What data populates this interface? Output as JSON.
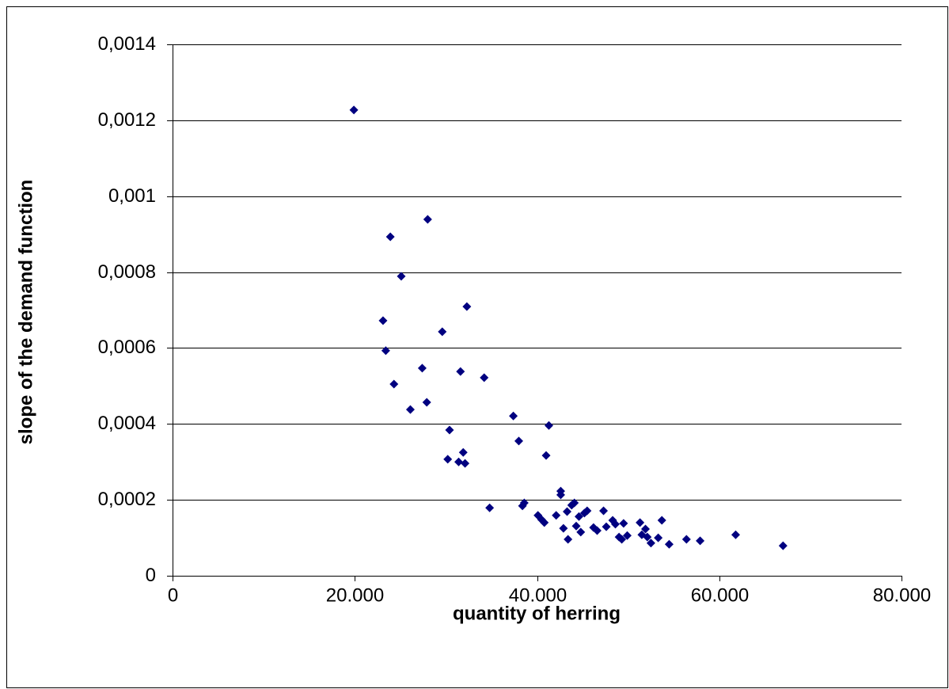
{
  "chart_data": {
    "type": "scatter",
    "x_label": "quantity of herring",
    "y_label": "slope of the demand function",
    "color": "#000080",
    "grid": true,
    "xlim": [
      0,
      80000
    ],
    "ylim": [
      0,
      0.0014
    ],
    "xticks": [
      0,
      {
        "value": 20000,
        "label": "20.000"
      },
      {
        "value": 40000,
        "label": "40.000"
      },
      {
        "value": 60000,
        "label": "60.000"
      },
      {
        "value": 80000,
        "label": "80.000"
      }
    ],
    "yticks": [
      0,
      {
        "value": 0.0002,
        "label": "0,0002"
      },
      {
        "value": 0.0004,
        "label": "0,0004"
      },
      {
        "value": 0.0006,
        "label": "0,0006"
      },
      {
        "value": 0.0008,
        "label": "0,0008"
      },
      {
        "value": 0.001,
        "label": "0,001"
      },
      {
        "value": 0.0012,
        "label": "0,0012"
      },
      {
        "value": 0.0014,
        "label": "0,0014"
      }
    ],
    "x": [
      19900,
      23100,
      23400,
      23900,
      24300,
      25100,
      26100,
      27400,
      27900,
      28000,
      29600,
      30200,
      30400,
      31400,
      31600,
      31900,
      32100,
      32300,
      34200,
      34800,
      37400,
      38000,
      38400,
      38600,
      40100,
      40500,
      40800,
      41000,
      41300,
      42100,
      42600,
      42600,
      42900,
      43300,
      43400,
      43800,
      44100,
      44300,
      44600,
      44800,
      45200,
      45500,
      46200,
      46600,
      47300,
      47600,
      48300,
      48600,
      49000,
      49300,
      49500,
      49900,
      51300,
      51500,
      51900,
      52100,
      52500,
      53300,
      53700,
      54500,
      56400,
      57900,
      61800,
      67000
    ],
    "values": [
      0.001227,
      0.000672,
      0.000593,
      0.000893,
      0.000505,
      0.000789,
      0.000438,
      0.000547,
      0.000457,
      0.000939,
      0.000643,
      0.000307,
      0.000384,
      0.0003,
      0.000538,
      0.000325,
      0.000296,
      0.000709,
      0.000522,
      0.000179,
      0.000421,
      0.000355,
      0.000184,
      0.000192,
      0.000159,
      0.000148,
      0.00014,
      0.000317,
      0.000396,
      0.000159,
      0.000213,
      0.000223,
      0.000125,
      0.000169,
      9.6e-05,
      0.000186,
      0.000192,
      0.000131,
      0.000156,
      0.000115,
      0.000165,
      0.000171,
      0.000127,
      0.000119,
      0.000171,
      0.000129,
      0.000146,
      0.000136,
      0.000102,
      9.6e-05,
      0.000138,
      0.000106,
      0.00014,
      0.000108,
      0.000123,
      0.000102,
      8.6e-05,
      0.0001,
      0.000146,
      8.3e-05,
      9.6e-05,
      9.2e-05,
      0.000108,
      7.9e-05
    ]
  }
}
